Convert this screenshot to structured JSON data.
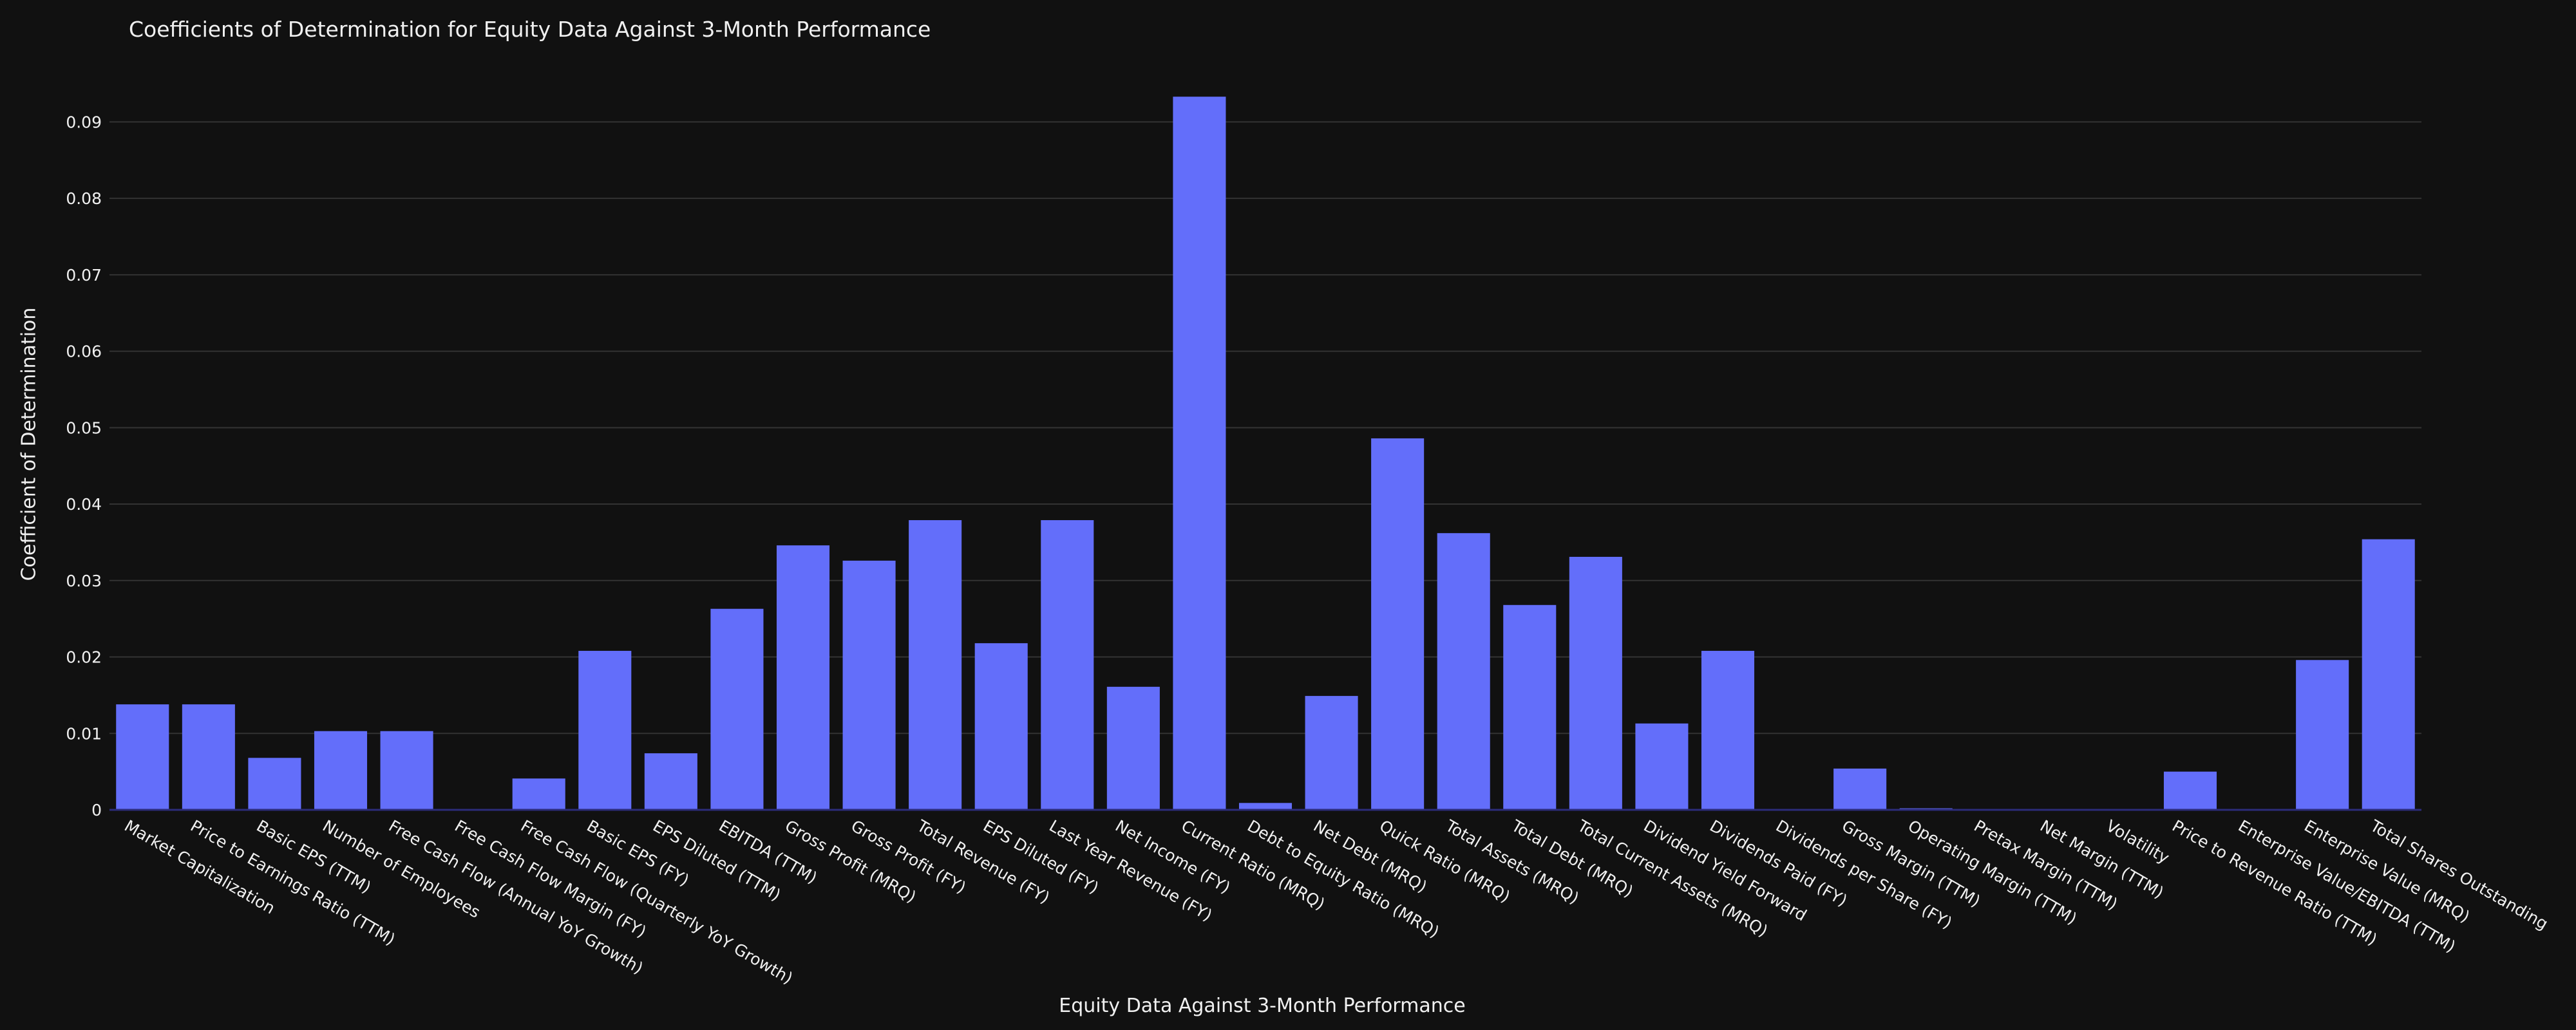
{
  "colors": {
    "background": "#111111",
    "bar": "#636efa",
    "grid": "#333333",
    "text": "#f0f0f0",
    "baseline": "#2c2c7a"
  },
  "chart_data": {
    "type": "bar",
    "title": "Coefficients of Determination for Equity Data Against 3-Month Performance",
    "xlabel": "Equity Data Against 3-Month Performance",
    "ylabel": "Coefficient of Determination",
    "ylim": [
      0,
      0.095
    ],
    "yticks": [
      0,
      0.01,
      0.02,
      0.03,
      0.04,
      0.05,
      0.06,
      0.07,
      0.08,
      0.09
    ],
    "ytick_labels": [
      "0",
      "0.01",
      "0.02",
      "0.03",
      "0.04",
      "0.05",
      "0.06",
      "0.07",
      "0.08",
      "0.09"
    ],
    "grid": true,
    "categories": [
      "Market Capitalization",
      "Price to Earnings Ratio (TTM)",
      "Basic EPS (TTM)",
      "Number of Employees",
      "Free Cash Flow (Annual YoY Growth)",
      "Free Cash Flow Margin (FY)",
      "Free Cash Flow (Quarterly YoY Growth)",
      "Basic EPS (FY)",
      "EPS Diluted (TTM)",
      "EBITDA (TTM)",
      "Gross Profit (MRQ)",
      "Gross Profit (FY)",
      "Total Revenue (FY)",
      "EPS Diluted (FY)",
      "Last Year Revenue (FY)",
      "Net Income (FY)",
      "Current Ratio (MRQ)",
      "Debt to Equity Ratio (MRQ)",
      "Net Debt (MRQ)",
      "Quick Ratio (MRQ)",
      "Total Assets (MRQ)",
      "Total Debt (MRQ)",
      "Total Current Assets (MRQ)",
      "Dividend Yield Forward",
      "Dividends Paid (FY)",
      "Dividends per Share (FY)",
      "Gross Margin (TTM)",
      "Operating Margin (TTM)",
      "Pretax Margin (TTM)",
      "Net Margin (TTM)",
      "Volatility",
      "Price to Revenue Ratio (TTM)",
      "Enterprise Value/EBITDA (TTM)",
      "Enterprise Value (MRQ)",
      "Total Shares Outstanding"
    ],
    "values": [
      0.0138,
      0.0138,
      0.0068,
      0.0103,
      0.0103,
      0.0,
      0.0041,
      0.0208,
      0.0074,
      0.0263,
      0.0346,
      0.0326,
      0.0379,
      0.0218,
      0.0379,
      0.0161,
      0.0933,
      0.0009,
      0.0149,
      0.0486,
      0.0362,
      0.0268,
      0.0331,
      0.0113,
      0.0208,
      0.0,
      0.0054,
      0.0002,
      0.0,
      0.0,
      0.0,
      0.005,
      0.0,
      0.0196,
      0.0354
    ]
  }
}
